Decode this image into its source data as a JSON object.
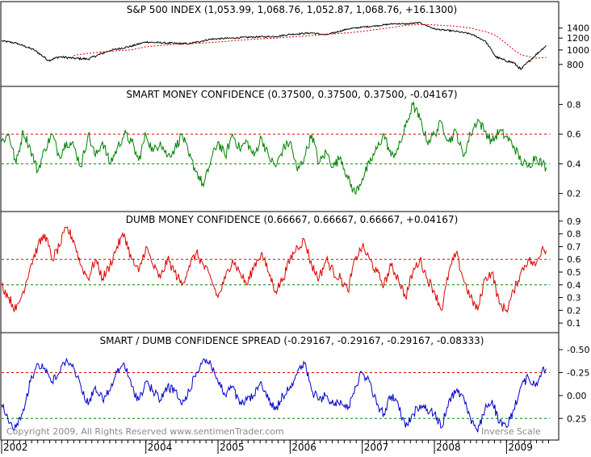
{
  "footer": {
    "copyright": "Copyright 2009, All Rights Reserved  www.sentimenTrader.com",
    "inverse_scale": "Inverse Scale"
  },
  "x_axis": {
    "type": "time",
    "range": [
      2002.0,
      2009.6
    ],
    "ticks": [
      {
        "label": "2002",
        "year": 2002.0
      },
      {
        "label": "2004",
        "year": 2004.0
      },
      {
        "label": "2005",
        "year": 2005.0
      },
      {
        "label": "2006",
        "year": 2006.0
      },
      {
        "label": "2007",
        "year": 2007.0
      },
      {
        "label": "2008",
        "year": 2008.0
      },
      {
        "label": "2009",
        "year": 2009.0
      }
    ]
  },
  "colors": {
    "sp500": "#000000",
    "sp500_ma": "#e00000",
    "smart": "#008000",
    "dumb": "#e00000",
    "spread": "#0000cc",
    "ref_red": "#e00000",
    "ref_green": "#008000",
    "frame": "#000000"
  },
  "chart_data": [
    {
      "type": "line",
      "title": "S&P 500 INDEX (1,053.99, 1,068.76, 1,052.87, 1,068.76, +16.1300)",
      "scale": "log",
      "ylim": [
        600,
        2000
      ],
      "yticks": [
        800,
        1000,
        1200,
        1400
      ],
      "x": [
        2002.0,
        2002.2,
        2002.45,
        2002.65,
        2002.8,
        2003.0,
        2003.2,
        2003.5,
        2003.8,
        2004.0,
        2004.3,
        2004.6,
        2004.9,
        2005.2,
        2005.5,
        2005.8,
        2006.0,
        2006.3,
        2006.5,
        2006.8,
        2007.0,
        2007.2,
        2007.45,
        2007.6,
        2007.8,
        2008.0,
        2008.3,
        2008.5,
        2008.7,
        2008.85,
        2008.95,
        2009.1,
        2009.2,
        2009.4,
        2009.55
      ],
      "series": [
        {
          "values": [
            1150,
            1110,
            1000,
            850,
            900,
            880,
            870,
            990,
            1060,
            1130,
            1110,
            1100,
            1180,
            1200,
            1220,
            1230,
            1270,
            1300,
            1260,
            1380,
            1420,
            1450,
            1500,
            1490,
            1520,
            1380,
            1330,
            1280,
            1150,
            900,
            860,
            820,
            740,
            920,
            1068.76
          ]
        },
        {
          "values": [
            null,
            null,
            null,
            null,
            null,
            920,
            950,
            980,
            1000,
            1050,
            1080,
            1100,
            1120,
            1150,
            1180,
            1200,
            1220,
            1250,
            1270,
            1300,
            1330,
            1370,
            1420,
            1460,
            1480,
            1470,
            1440,
            1400,
            1330,
            1250,
            1150,
            1000,
            930,
            880,
            890
          ]
        }
      ]
    },
    {
      "type": "line",
      "title": "SMART MONEY CONFIDENCE (0.37500, 0.37500, 0.37500, -0.04167)",
      "ylim": [
        0.1,
        0.9
      ],
      "yticks": [
        0.2,
        0.4,
        0.6,
        0.8
      ],
      "ref_lines": [
        0.6,
        0.4
      ],
      "x": [
        2002.0,
        2002.1,
        2002.2,
        2002.3,
        2002.4,
        2002.5,
        2002.6,
        2002.7,
        2002.8,
        2002.9,
        2003.0,
        2003.1,
        2003.2,
        2003.3,
        2003.4,
        2003.5,
        2003.6,
        2003.7,
        2003.8,
        2003.9,
        2004.0,
        2004.1,
        2004.2,
        2004.3,
        2004.4,
        2004.5,
        2004.6,
        2004.7,
        2004.8,
        2004.9,
        2005.0,
        2005.1,
        2005.2,
        2005.3,
        2005.4,
        2005.5,
        2005.6,
        2005.7,
        2005.8,
        2005.9,
        2006.0,
        2006.1,
        2006.2,
        2006.3,
        2006.4,
        2006.5,
        2006.6,
        2006.7,
        2006.8,
        2006.9,
        2007.0,
        2007.1,
        2007.2,
        2007.3,
        2007.4,
        2007.5,
        2007.6,
        2007.7,
        2007.8,
        2007.9,
        2008.0,
        2008.1,
        2008.2,
        2008.3,
        2008.4,
        2008.5,
        2008.6,
        2008.7,
        2008.8,
        2008.9,
        2009.0,
        2009.1,
        2009.2,
        2009.3,
        2009.4,
        2009.5,
        2009.55
      ],
      "values": [
        0.55,
        0.6,
        0.4,
        0.62,
        0.5,
        0.35,
        0.5,
        0.6,
        0.45,
        0.55,
        0.52,
        0.38,
        0.6,
        0.45,
        0.55,
        0.4,
        0.5,
        0.6,
        0.55,
        0.42,
        0.6,
        0.48,
        0.55,
        0.45,
        0.5,
        0.6,
        0.45,
        0.35,
        0.25,
        0.42,
        0.55,
        0.45,
        0.6,
        0.5,
        0.55,
        0.45,
        0.58,
        0.45,
        0.38,
        0.5,
        0.55,
        0.35,
        0.45,
        0.6,
        0.4,
        0.48,
        0.38,
        0.45,
        0.3,
        0.2,
        0.3,
        0.4,
        0.5,
        0.6,
        0.45,
        0.5,
        0.65,
        0.8,
        0.7,
        0.55,
        0.6,
        0.68,
        0.55,
        0.62,
        0.45,
        0.6,
        0.7,
        0.62,
        0.55,
        0.62,
        0.58,
        0.52,
        0.42,
        0.38,
        0.45,
        0.4,
        0.375
      ]
    },
    {
      "type": "line",
      "title": "DUMB MONEY CONFIDENCE (0.66667, 0.66667, 0.66667, +0.04167)",
      "ylim": [
        0.05,
        0.95
      ],
      "yticks": [
        0.1,
        0.2,
        0.3,
        0.4,
        0.5,
        0.6,
        0.7,
        0.8,
        0.9
      ],
      "ref_lines": [
        0.6,
        0.4
      ],
      "x": [
        2002.0,
        2002.1,
        2002.2,
        2002.3,
        2002.4,
        2002.5,
        2002.6,
        2002.7,
        2002.8,
        2002.9,
        2003.0,
        2003.1,
        2003.2,
        2003.3,
        2003.4,
        2003.5,
        2003.6,
        2003.7,
        2003.8,
        2003.9,
        2004.0,
        2004.1,
        2004.2,
        2004.3,
        2004.4,
        2004.5,
        2004.6,
        2004.7,
        2004.8,
        2004.9,
        2005.0,
        2005.1,
        2005.2,
        2005.3,
        2005.4,
        2005.5,
        2005.6,
        2005.7,
        2005.8,
        2005.9,
        2006.0,
        2006.1,
        2006.2,
        2006.3,
        2006.4,
        2006.5,
        2006.6,
        2006.7,
        2006.8,
        2006.9,
        2007.0,
        2007.1,
        2007.2,
        2007.3,
        2007.4,
        2007.5,
        2007.6,
        2007.7,
        2007.8,
        2007.9,
        2008.0,
        2008.1,
        2008.2,
        2008.3,
        2008.4,
        2008.5,
        2008.6,
        2008.7,
        2008.8,
        2008.9,
        2009.0,
        2009.1,
        2009.2,
        2009.3,
        2009.4,
        2009.5,
        2009.55
      ],
      "values": [
        0.4,
        0.3,
        0.2,
        0.35,
        0.55,
        0.7,
        0.8,
        0.6,
        0.7,
        0.85,
        0.75,
        0.55,
        0.45,
        0.6,
        0.45,
        0.55,
        0.7,
        0.8,
        0.6,
        0.5,
        0.7,
        0.55,
        0.45,
        0.6,
        0.5,
        0.4,
        0.55,
        0.65,
        0.55,
        0.45,
        0.3,
        0.45,
        0.6,
        0.5,
        0.4,
        0.55,
        0.65,
        0.5,
        0.35,
        0.45,
        0.6,
        0.7,
        0.75,
        0.55,
        0.45,
        0.6,
        0.5,
        0.45,
        0.35,
        0.6,
        0.7,
        0.6,
        0.5,
        0.4,
        0.55,
        0.45,
        0.3,
        0.5,
        0.6,
        0.45,
        0.35,
        0.2,
        0.5,
        0.65,
        0.45,
        0.3,
        0.2,
        0.45,
        0.5,
        0.25,
        0.2,
        0.35,
        0.5,
        0.6,
        0.55,
        0.7,
        0.66667
      ]
    },
    {
      "type": "line",
      "title": "SMART / DUMB CONFIDENCE SPREAD (-0.29167, -0.29167, -0.29167, -0.08333)",
      "inverted": true,
      "ylim": [
        -0.65,
        0.45
      ],
      "yticks": [
        -0.5,
        -0.25,
        0.0,
        0.25
      ],
      "ytick_labels": [
        "-0.50",
        "-0.25",
        "0.00",
        "0.25"
      ],
      "ref_lines": [
        -0.25,
        0.25
      ],
      "x": [
        2002.0,
        2002.1,
        2002.2,
        2002.3,
        2002.4,
        2002.5,
        2002.6,
        2002.7,
        2002.8,
        2002.9,
        2003.0,
        2003.1,
        2003.2,
        2003.3,
        2003.4,
        2003.5,
        2003.6,
        2003.7,
        2003.8,
        2003.9,
        2004.0,
        2004.1,
        2004.2,
        2004.3,
        2004.4,
        2004.5,
        2004.6,
        2004.7,
        2004.8,
        2004.9,
        2005.0,
        2005.1,
        2005.2,
        2005.3,
        2005.4,
        2005.5,
        2005.6,
        2005.7,
        2005.8,
        2005.9,
        2006.0,
        2006.1,
        2006.2,
        2006.3,
        2006.4,
        2006.5,
        2006.6,
        2006.7,
        2006.8,
        2006.9,
        2007.0,
        2007.1,
        2007.2,
        2007.3,
        2007.4,
        2007.5,
        2007.6,
        2007.7,
        2007.8,
        2007.9,
        2008.0,
        2008.1,
        2008.2,
        2008.3,
        2008.4,
        2008.5,
        2008.6,
        2008.7,
        2008.8,
        2008.9,
        2009.0,
        2009.1,
        2009.2,
        2009.3,
        2009.4,
        2009.5,
        2009.55
      ],
      "values": [
        0.1,
        0.3,
        0.35,
        0.15,
        -0.15,
        -0.35,
        -0.3,
        -0.15,
        -0.25,
        -0.4,
        -0.3,
        -0.1,
        0.1,
        -0.1,
        0.05,
        -0.05,
        -0.25,
        -0.35,
        -0.1,
        0.05,
        -0.15,
        -0.05,
        0.05,
        -0.1,
        -0.05,
        0.1,
        -0.05,
        -0.25,
        -0.4,
        -0.35,
        -0.15,
        0.0,
        -0.1,
        0.1,
        0.05,
        0.0,
        -0.15,
        0.05,
        0.15,
        0.0,
        -0.1,
        -0.25,
        -0.35,
        -0.05,
        0.05,
        0.0,
        0.1,
        0.05,
        0.15,
        -0.1,
        -0.25,
        -0.15,
        0.1,
        0.2,
        0.0,
        0.1,
        0.35,
        0.2,
        0.1,
        0.15,
        0.2,
        0.35,
        0.05,
        -0.05,
        0.0,
        0.25,
        0.4,
        0.15,
        0.05,
        0.3,
        0.35,
        0.15,
        -0.1,
        -0.2,
        -0.1,
        -0.3,
        -0.29167
      ]
    }
  ]
}
